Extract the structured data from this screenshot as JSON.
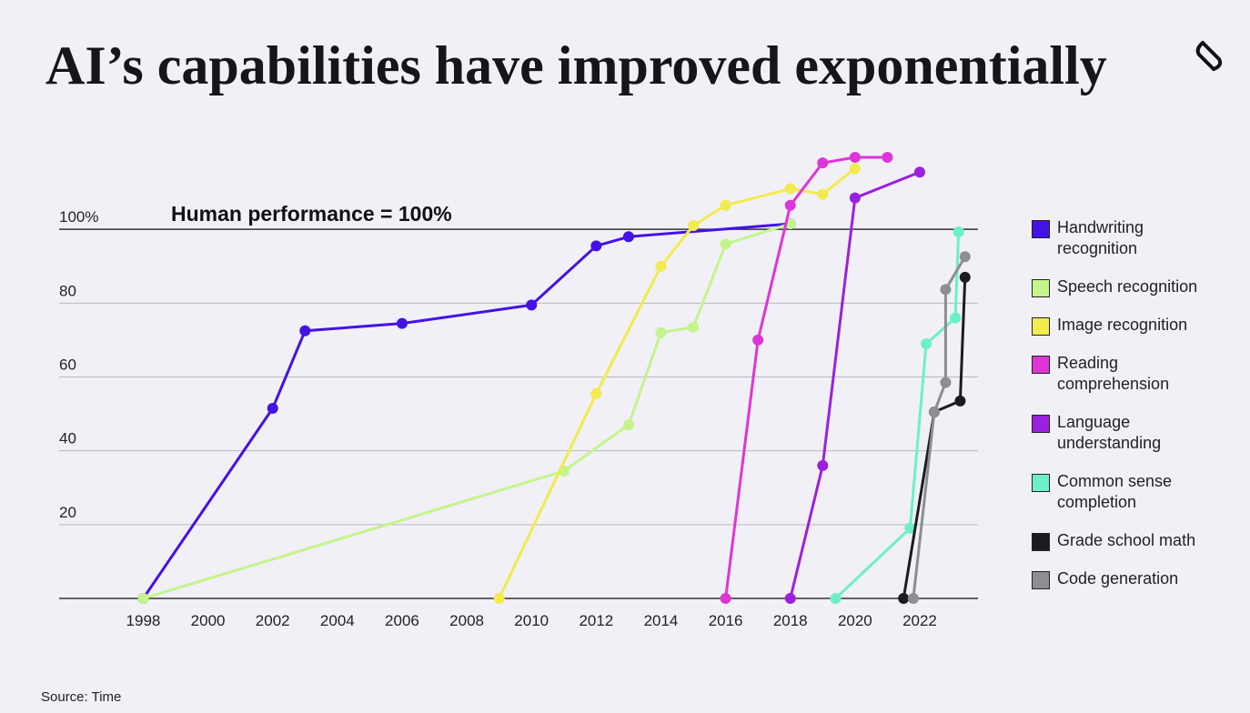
{
  "chart_data": {
    "type": "line",
    "title": "AI’s capabilities have improved exponentially",
    "annotation": "Human performance = 100%",
    "source": "Source: Time",
    "xlim": [
      1995.4,
      2023.8
    ],
    "xticks": [
      1998,
      2000,
      2002,
      2004,
      2006,
      2008,
      2010,
      2012,
      2014,
      2016,
      2018,
      2020,
      2022
    ],
    "ylim": [
      0,
      120
    ],
    "yticks": [
      {
        "value": 100,
        "label": "100%"
      },
      80,
      60,
      40,
      20
    ],
    "grid": true,
    "series": [
      {
        "name": "Handwriting recognition",
        "color": "#4412e6",
        "x": [
          1998,
          2002,
          2003,
          2006,
          2010,
          2012,
          2013,
          2018
        ],
        "values": [
          0,
          51.5,
          72.5,
          74.5,
          79.5,
          95.5,
          98,
          101.5
        ]
      },
      {
        "name": "Speech recognition",
        "color": "#c4f48c",
        "x": [
          1998,
          2011,
          2013,
          2014,
          2015,
          2016,
          2018
        ],
        "values": [
          0,
          34.5,
          47,
          72,
          73.5,
          96,
          101.5
        ]
      },
      {
        "name": "Image recognition",
        "color": "#f2ea4e",
        "x": [
          2009,
          2012,
          2014,
          2015,
          2016,
          2018,
          2019,
          2020
        ],
        "values": [
          0,
          55.5,
          90,
          101,
          106.5,
          111,
          109.5,
          116.5
        ]
      },
      {
        "name": "Reading comprehension",
        "color": "#de36d6",
        "x": [
          2016,
          2017,
          2018,
          2019,
          2020,
          2021
        ],
        "values": [
          0,
          70,
          106.5,
          118,
          119.5,
          119.5
        ]
      },
      {
        "name": "Language understanding",
        "color": "#9a22de",
        "x": [
          2018,
          2019,
          2020,
          2022
        ],
        "values": [
          0,
          36,
          108.5,
          115.5
        ]
      },
      {
        "name": "Common sense completion",
        "color": "#6eefc6",
        "x": [
          2019.4,
          2021.7,
          2022.2,
          2023.1,
          2023.2
        ],
        "values": [
          0,
          19,
          69,
          76,
          99.3
        ]
      },
      {
        "name": "Grade school math",
        "color": "#1c1b20",
        "x": [
          2021.5,
          2022.45,
          2023.25,
          2023.4
        ],
        "values": [
          0,
          50.5,
          53.5,
          87
        ]
      },
      {
        "name": "Code generation",
        "color": "#8e8e92",
        "x": [
          2021.8,
          2022.45,
          2022.8,
          2022.8,
          2023.4
        ],
        "values": [
          0,
          50.5,
          58.5,
          83.7,
          92.6
        ]
      }
    ]
  }
}
